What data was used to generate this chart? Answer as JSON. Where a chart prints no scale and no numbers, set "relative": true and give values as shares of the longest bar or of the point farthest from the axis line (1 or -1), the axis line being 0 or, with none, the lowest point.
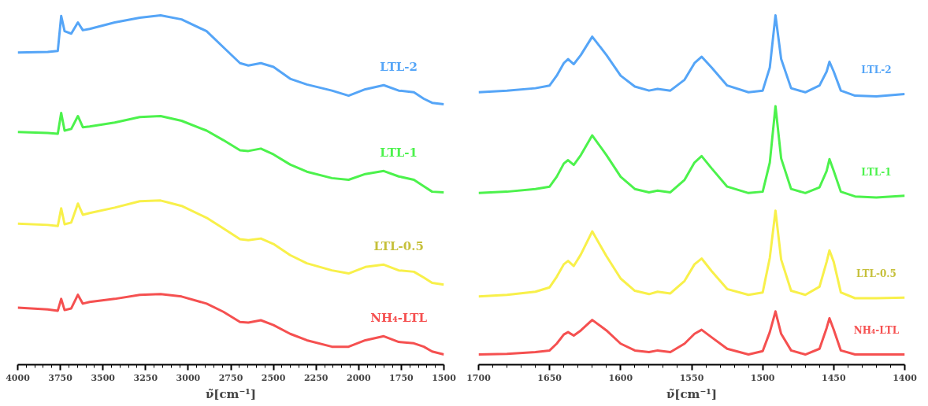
{
  "chart_data": [
    {
      "type": "line",
      "relative": true,
      "xlabel": "ν̃[cm⁻¹]",
      "xlim": [
        4000,
        1500
      ],
      "xticks": [
        4000,
        3750,
        3500,
        3250,
        3000,
        2750,
        2500,
        2250,
        2000,
        1750,
        1500
      ],
      "grid": false,
      "legend": false,
      "marker": "none",
      "line_style": "solid",
      "x": [
        4000,
        3824,
        3765,
        3745,
        3725,
        3686,
        3647,
        3618,
        3578,
        3431,
        3284,
        3162,
        3039,
        2892,
        2794,
        2696,
        2647,
        2574,
        2500,
        2402,
        2304,
        2157,
        2059,
        1961,
        1853,
        1765,
        1676,
        1618,
        1569,
        1500
      ],
      "series": [
        {
          "name": "LTL-2",
          "color": "#55a5f7",
          "values": [
            0.89,
            0.892,
            0.895,
            0.998,
            0.953,
            0.946,
            0.979,
            0.956,
            0.96,
            0.979,
            0.993,
            1.0,
            0.988,
            0.953,
            0.906,
            0.859,
            0.852,
            0.859,
            0.848,
            0.813,
            0.796,
            0.778,
            0.763,
            0.782,
            0.794,
            0.778,
            0.773,
            0.754,
            0.742,
            0.738
          ]
        },
        {
          "name": "LTL-1",
          "color": "#4cf24c",
          "values": [
            0.656,
            0.653,
            0.651,
            0.712,
            0.66,
            0.665,
            0.703,
            0.67,
            0.672,
            0.684,
            0.7,
            0.703,
            0.689,
            0.66,
            0.632,
            0.602,
            0.6,
            0.607,
            0.59,
            0.56,
            0.539,
            0.52,
            0.515,
            0.532,
            0.541,
            0.525,
            0.515,
            0.496,
            0.48,
            0.478
          ]
        },
        {
          "name": "LTL-0.5",
          "color": "#f8f04a",
          "values": [
            0.386,
            0.382,
            0.379,
            0.431,
            0.384,
            0.389,
            0.445,
            0.412,
            0.417,
            0.433,
            0.452,
            0.454,
            0.438,
            0.403,
            0.372,
            0.34,
            0.337,
            0.342,
            0.326,
            0.293,
            0.269,
            0.248,
            0.239,
            0.258,
            0.265,
            0.248,
            0.244,
            0.227,
            0.211,
            0.206
          ]
        },
        {
          "name": "NH₄-LTL",
          "color": "#f55050",
          "values": [
            0.138,
            0.133,
            0.129,
            0.164,
            0.131,
            0.136,
            0.176,
            0.15,
            0.155,
            0.164,
            0.176,
            0.178,
            0.171,
            0.15,
            0.126,
            0.096,
            0.094,
            0.101,
            0.087,
            0.061,
            0.042,
            0.023,
            0.023,
            0.042,
            0.054,
            0.037,
            0.033,
            0.023,
            0.009,
            0.0
          ]
        }
      ]
    },
    {
      "type": "line",
      "relative": true,
      "xlabel": "ν̃[cm⁻¹]",
      "xlim": [
        1700,
        1400
      ],
      "xticks": [
        1700,
        1650,
        1600,
        1550,
        1500,
        1450,
        1400
      ],
      "grid": false,
      "legend": false,
      "marker": "none",
      "line_style": "solid",
      "x": [
        1700,
        1680,
        1660,
        1650,
        1645,
        1640,
        1637,
        1633,
        1628,
        1620,
        1610,
        1600,
        1590,
        1580,
        1574,
        1565,
        1555,
        1548,
        1543,
        1536,
        1525,
        1510,
        1500,
        1495,
        1491,
        1487,
        1480,
        1470,
        1460,
        1455,
        1453,
        1450,
        1445,
        1435,
        1420,
        1400
      ],
      "series": [
        {
          "name": "LTL-2",
          "color": "#55a5f7",
          "values": [
            0.773,
            0.778,
            0.785,
            0.793,
            0.822,
            0.859,
            0.871,
            0.856,
            0.883,
            0.937,
            0.883,
            0.822,
            0.79,
            0.778,
            0.783,
            0.778,
            0.81,
            0.859,
            0.878,
            0.846,
            0.793,
            0.773,
            0.778,
            0.846,
            1.0,
            0.871,
            0.785,
            0.773,
            0.793,
            0.834,
            0.863,
            0.834,
            0.778,
            0.763,
            0.761,
            0.768
          ]
        },
        {
          "name": "LTL-1",
          "color": "#4cf24c",
          "values": [
            0.476,
            0.48,
            0.488,
            0.495,
            0.524,
            0.563,
            0.573,
            0.559,
            0.588,
            0.646,
            0.588,
            0.524,
            0.488,
            0.478,
            0.483,
            0.478,
            0.515,
            0.566,
            0.585,
            0.549,
            0.495,
            0.476,
            0.48,
            0.566,
            0.732,
            0.578,
            0.488,
            0.476,
            0.493,
            0.541,
            0.576,
            0.541,
            0.48,
            0.466,
            0.463,
            0.468
          ]
        },
        {
          "name": "LTL-0.5",
          "color": "#f8f04a",
          "values": [
            0.171,
            0.176,
            0.185,
            0.198,
            0.229,
            0.266,
            0.276,
            0.261,
            0.295,
            0.363,
            0.29,
            0.224,
            0.188,
            0.178,
            0.185,
            0.18,
            0.217,
            0.266,
            0.283,
            0.246,
            0.193,
            0.176,
            0.183,
            0.285,
            0.424,
            0.28,
            0.188,
            0.176,
            0.2,
            0.273,
            0.307,
            0.273,
            0.183,
            0.166,
            0.166,
            0.168
          ]
        },
        {
          "name": "NH₄-LTL",
          "color": "#f55050",
          "values": [
            0.0,
            0.002,
            0.007,
            0.012,
            0.032,
            0.059,
            0.066,
            0.056,
            0.071,
            0.102,
            0.071,
            0.032,
            0.012,
            0.007,
            0.012,
            0.007,
            0.032,
            0.061,
            0.073,
            0.051,
            0.017,
            0.0,
            0.01,
            0.066,
            0.127,
            0.061,
            0.012,
            0.0,
            0.017,
            0.078,
            0.107,
            0.073,
            0.012,
            0.0,
            0.0,
            0.0
          ]
        }
      ]
    }
  ]
}
